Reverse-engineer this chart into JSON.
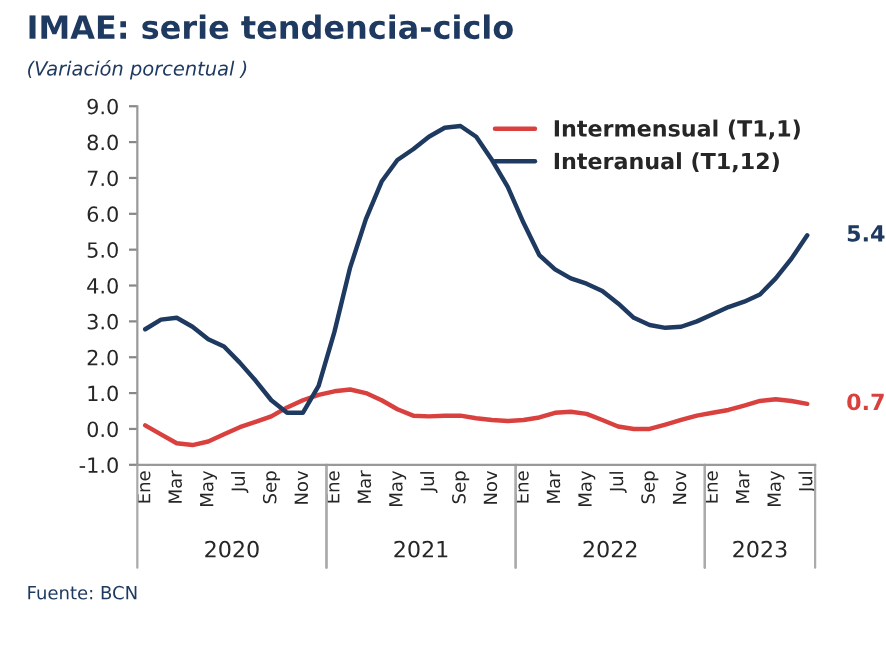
{
  "chart_data": {
    "type": "line",
    "title": "IMAE: serie tendencia-ciclo",
    "subtitle": "(Variación porcentual )",
    "categories": [
      "Ene",
      null,
      "Mar",
      null,
      "May",
      null,
      "Jul",
      null,
      "Sep",
      null,
      "Nov",
      null,
      "Ene",
      null,
      "Mar",
      null,
      "May",
      null,
      "Jul",
      null,
      "Sep",
      null,
      "Nov",
      null,
      "Ene",
      null,
      "Mar",
      null,
      "May",
      null,
      "Jul",
      null,
      "Sep",
      null,
      "Nov",
      null,
      "Ene",
      null,
      "Mar",
      null,
      "May",
      null,
      "Jul"
    ],
    "series": [
      {
        "name": "Intermensual (T1,1)",
        "color": "#d9413f",
        "values": [
          0.1,
          -0.15,
          -0.4,
          -0.45,
          -0.35,
          -0.15,
          0.05,
          0.2,
          0.35,
          0.6,
          0.8,
          0.95,
          1.05,
          1.1,
          1.0,
          0.8,
          0.55,
          0.37,
          0.35,
          0.37,
          0.37,
          0.3,
          0.25,
          0.22,
          0.25,
          0.32,
          0.45,
          0.48,
          0.42,
          0.25,
          0.07,
          0.0,
          0.0,
          0.12,
          0.25,
          0.37,
          0.45,
          0.53,
          0.65,
          0.78,
          0.83,
          0.78,
          0.7
        ],
        "value_labels": [
          null,
          null,
          null,
          null,
          null,
          null,
          null,
          null,
          null,
          null,
          null,
          null,
          null,
          null,
          null,
          null,
          null,
          null,
          null,
          null,
          null,
          null,
          null,
          null,
          null,
          null,
          null,
          null,
          null,
          null,
          null,
          null,
          null,
          null,
          null,
          null,
          null,
          null,
          null,
          null,
          null,
          null,
          "0.7"
        ]
      },
      {
        "name": "Interanual (T1,12)",
        "color": "#1f3a60",
        "values": [
          2.78,
          3.05,
          3.1,
          2.85,
          2.5,
          2.3,
          1.85,
          1.35,
          0.8,
          0.45,
          0.45,
          1.2,
          2.7,
          4.5,
          5.85,
          6.9,
          7.5,
          7.8,
          8.15,
          8.4,
          8.45,
          8.15,
          7.5,
          6.75,
          5.75,
          4.85,
          4.45,
          4.2,
          4.05,
          3.85,
          3.5,
          3.1,
          2.9,
          2.82,
          2.85,
          3.0,
          3.2,
          3.4,
          3.55,
          3.75,
          4.2,
          4.75,
          5.4
        ],
        "value_labels": [
          null,
          null,
          null,
          null,
          null,
          null,
          null,
          null,
          null,
          null,
          null,
          null,
          null,
          null,
          null,
          null,
          null,
          null,
          null,
          null,
          null,
          null,
          null,
          null,
          null,
          null,
          null,
          null,
          null,
          null,
          null,
          null,
          null,
          null,
          null,
          null,
          null,
          null,
          null,
          null,
          null,
          null,
          "5.4"
        ]
      }
    ],
    "ylim": [
      -1,
      9
    ],
    "yticks": [
      {
        "value": -1,
        "label": "-1.0"
      },
      {
        "value": 0,
        "label": "0.0"
      },
      {
        "value": 1,
        "label": "1.0"
      },
      {
        "value": 2,
        "label": "2.0"
      },
      {
        "value": 3,
        "label": "3.0"
      },
      {
        "value": 4,
        "label": "4.0"
      },
      {
        "value": 5,
        "label": "5.0"
      },
      {
        "value": 6,
        "label": "6.0"
      },
      {
        "value": 7,
        "label": "7.0"
      },
      {
        "value": 8,
        "label": "8.0"
      },
      {
        "value": 9,
        "label": "9.0"
      }
    ],
    "annotations": [
      "2020",
      "2021",
      "2022",
      "2023",
      "Fuente: BCN"
    ],
    "legend": "top right",
    "grid": false,
    "marker": "none",
    "line_style": "solid"
  }
}
